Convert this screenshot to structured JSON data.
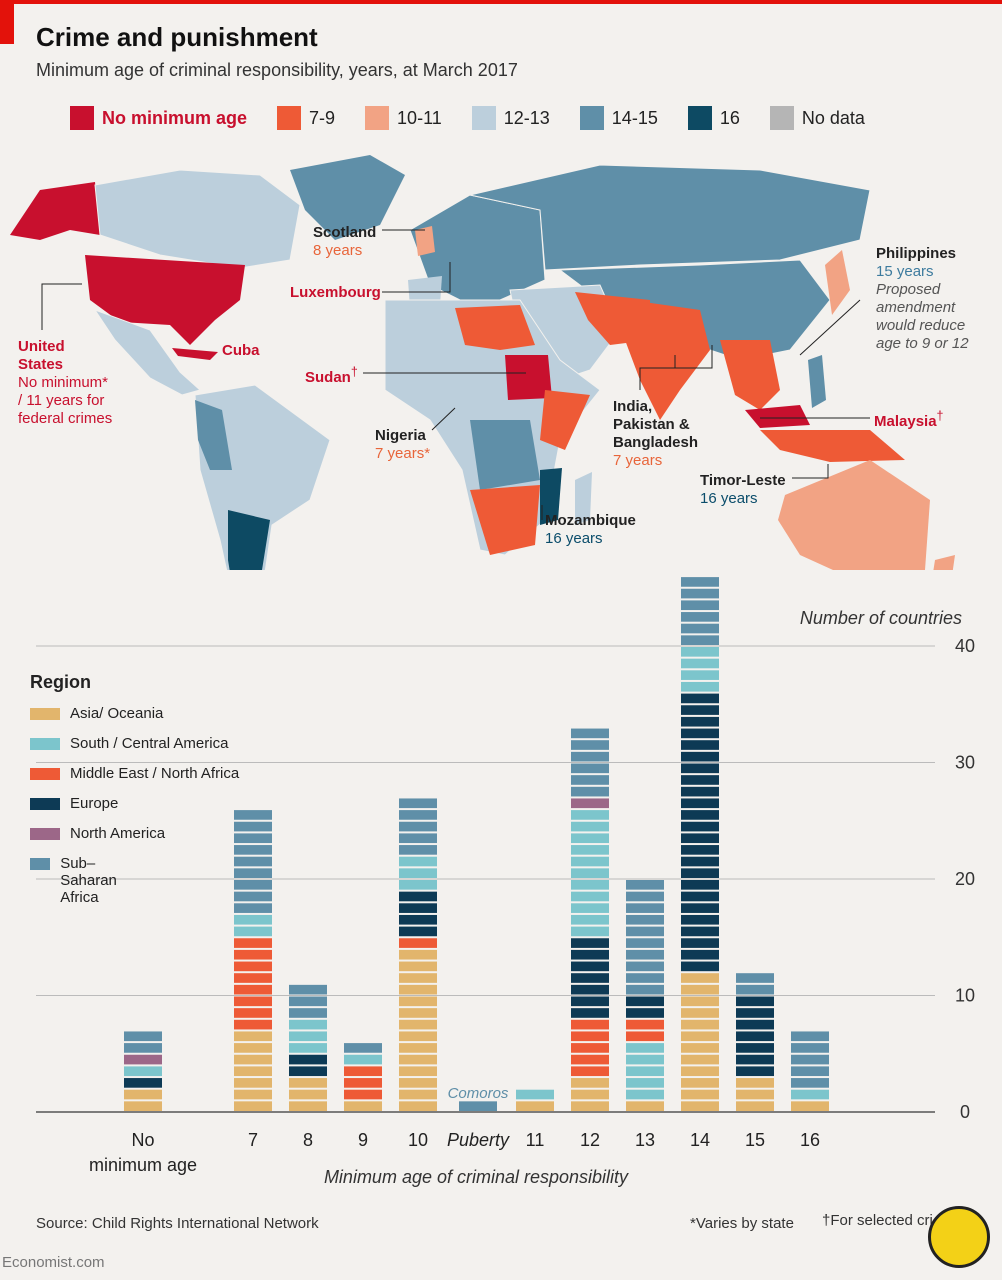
{
  "header": {
    "title": "Crime and punishment",
    "subtitle": "Minimum age of criminal responsibility, years, at March 2017"
  },
  "legend": [
    {
      "label": "No minimum age",
      "color": "#c8102e"
    },
    {
      "label": "7-9",
      "color": "#ee5a36"
    },
    {
      "label": "10-11",
      "color": "#f2a384"
    },
    {
      "label": "12-13",
      "color": "#bccfdc"
    },
    {
      "label": "14-15",
      "color": "#5f8fa8"
    },
    {
      "label": "16",
      "color": "#0d4a63"
    },
    {
      "label": "No data",
      "color": "#b5b5b5"
    }
  ],
  "map_labels": {
    "scotland_name": "Scotland",
    "scotland_value": "8 years",
    "luxembourg_name": "Luxembourg",
    "us_name_1": "United",
    "us_name_2": "States",
    "us_note_1": "No minimum*",
    "us_note_2": "/ 11 years for",
    "us_note_3": "federal crimes",
    "cuba_name": "Cuba",
    "sudan_name": "Sudan",
    "nigeria_name": "Nigeria",
    "nigeria_value": "7 years*",
    "india_1": "India,",
    "india_2": "Pakistan &",
    "india_3": "Bangladesh",
    "india_value": "7 years",
    "philippines_name": "Philippines",
    "philippines_value": "15 years",
    "philippines_note_1": "Proposed",
    "philippines_note_2": "amendment",
    "philippines_note_3": "would reduce",
    "philippines_note_4": "age to 9 or 12",
    "malaysia_name": "Malaysia",
    "timor_name": "Timor-Leste",
    "timor_value": "16 years",
    "mozambique_name": "Mozambique",
    "mozambique_value": "16 years",
    "dagger": "†"
  },
  "region_legend": {
    "title": "Region",
    "items": [
      {
        "label": "Asia/ Oceania",
        "color": "#e2b56c"
      },
      {
        "label": "South / Central America",
        "color": "#7cc5cc"
      },
      {
        "label": "Middle East / North Africa",
        "color": "#ee5a36"
      },
      {
        "label": "Europe",
        "color": "#0d3a55"
      },
      {
        "label": "North America",
        "color": "#9c6788"
      },
      {
        "label": "Sub–Saharan Africa",
        "color": "#5f8fa8"
      }
    ]
  },
  "chart_data": {
    "type": "bar",
    "stacked": true,
    "units_label": "Number of countries",
    "xlabel": "Minimum age of criminal responsibility",
    "categories": [
      "No minimum age",
      "7",
      "8",
      "9",
      "10",
      "Puberty",
      "11",
      "12",
      "13",
      "14",
      "15",
      "16"
    ],
    "ylim": [
      0,
      45
    ],
    "yticks": [
      0,
      10,
      20,
      30,
      40
    ],
    "annotation": {
      "category": "Puberty",
      "text": "Comoros"
    },
    "series": [
      {
        "name": "Asia/ Oceania",
        "color": "#e2b56c",
        "values": [
          2,
          7,
          3,
          1,
          14,
          0,
          1,
          3,
          1,
          12,
          3,
          1
        ]
      },
      {
        "name": "South / Central America",
        "color": "#7cc5cc",
        "values": [
          0,
          0,
          0,
          0,
          0,
          0,
          1,
          0,
          5,
          0,
          0,
          0
        ]
      },
      {
        "name": "Middle East / North Africa",
        "color": "#ee5a36",
        "values": [
          0,
          8,
          0,
          3,
          1,
          0,
          0,
          5,
          2,
          0,
          0,
          0
        ]
      },
      {
        "name": "Europe",
        "color": "#0d3a55",
        "values": [
          1,
          0,
          2,
          0,
          4,
          0,
          0,
          7,
          2,
          24,
          7,
          0
        ]
      },
      {
        "name": "South / Central America",
        "color": "#7cc5cc",
        "values": [
          1,
          2,
          3,
          1,
          3,
          0,
          0,
          11,
          0,
          4,
          0,
          1
        ]
      },
      {
        "name": "North America",
        "color": "#9c6788",
        "values": [
          1,
          0,
          0,
          0,
          0,
          0,
          0,
          1,
          0,
          0,
          0,
          0
        ]
      },
      {
        "name": "Sub–Saharan Africa",
        "color": "#5f8fa8",
        "values": [
          2,
          9,
          3,
          1,
          5,
          1,
          0,
          6,
          10,
          6,
          2,
          5
        ]
      }
    ]
  },
  "footer": {
    "source": "Source: Child Rights International Network",
    "note_varies": "*Varies by state",
    "note_selected": "†For selected cri",
    "brand": "Economist.com"
  }
}
